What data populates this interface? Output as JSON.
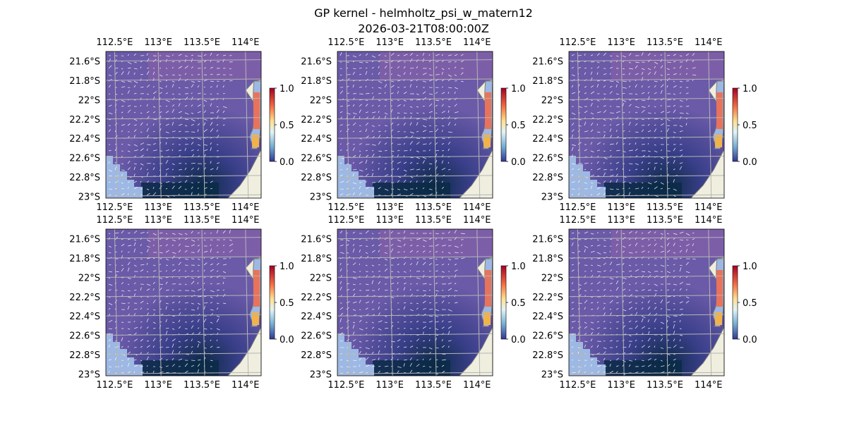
{
  "figure": {
    "title": "GP kernel - helmholtz_psi_w_matern12",
    "subtitle": "2026-03-21T08:00:00Z"
  },
  "map": {
    "lon_ticks": [
      "112.5°E",
      "113°E",
      "113.5°E",
      "114°E"
    ],
    "lon_tick_values": [
      112.5,
      113.0,
      113.5,
      114.0
    ],
    "lat_ticks": [
      "21.6°S",
      "21.8°S",
      "22°S",
      "22.2°S",
      "22.4°S",
      "22.6°S",
      "22.8°S",
      "23°S"
    ],
    "lat_tick_values": [
      -21.6,
      -21.8,
      -22.0,
      -22.2,
      -22.4,
      -22.6,
      -22.8,
      -23.0
    ],
    "lon_range": [
      112.4,
      114.18
    ],
    "lat_range": [
      -23.02,
      -21.5
    ],
    "colors": {
      "ocean": "#9db8e3",
      "land": "#f0efdf",
      "field_main": "#6a5aa8",
      "field_dark": "#0b2a46",
      "field_mid": "#3a3f8a",
      "coast_line": "#7a7a7a",
      "grid": "#b5b5b5",
      "arrows": "#ffffff",
      "hot_patch": "#e9735a",
      "warm_patch": "#f2b24a"
    }
  },
  "colorbar": {
    "ticks": [
      "0.0",
      "0.5",
      "1.0"
    ],
    "tick_values": [
      0.0,
      0.5,
      1.0
    ],
    "range": [
      0.0,
      1.0
    ],
    "colormap": "RdYlBu_r"
  },
  "panels": [
    {
      "row": 0,
      "col": 0
    },
    {
      "row": 0,
      "col": 1
    },
    {
      "row": 0,
      "col": 2
    },
    {
      "row": 1,
      "col": 0
    },
    {
      "row": 1,
      "col": 1
    },
    {
      "row": 1,
      "col": 2
    }
  ]
}
